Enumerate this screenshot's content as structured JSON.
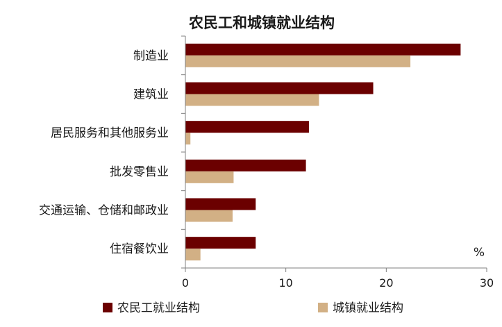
{
  "chart_data": {
    "type": "bar",
    "orientation": "horizontal",
    "title": "农民工和城镇就业结构",
    "unit": "%",
    "categories": [
      "制造业",
      "建筑业",
      "居民服务和其他服务业",
      "批发零售业",
      "交通运输、仓储和邮政业",
      "住宿餐饮业"
    ],
    "series": [
      {
        "name": "农民工就业结构",
        "color": "#6b0000",
        "values": [
          27.4,
          18.7,
          12.3,
          12.0,
          7.0,
          7.0
        ]
      },
      {
        "name": "城镇就业结构",
        "color": "#d2b085",
        "values": [
          22.4,
          13.3,
          0.5,
          4.8,
          4.7,
          1.5
        ]
      }
    ],
    "xlim": [
      0,
      30
    ],
    "xticks": [
      "0",
      "10",
      "20",
      "30"
    ],
    "legend_position": "bottom",
    "grid": false
  }
}
